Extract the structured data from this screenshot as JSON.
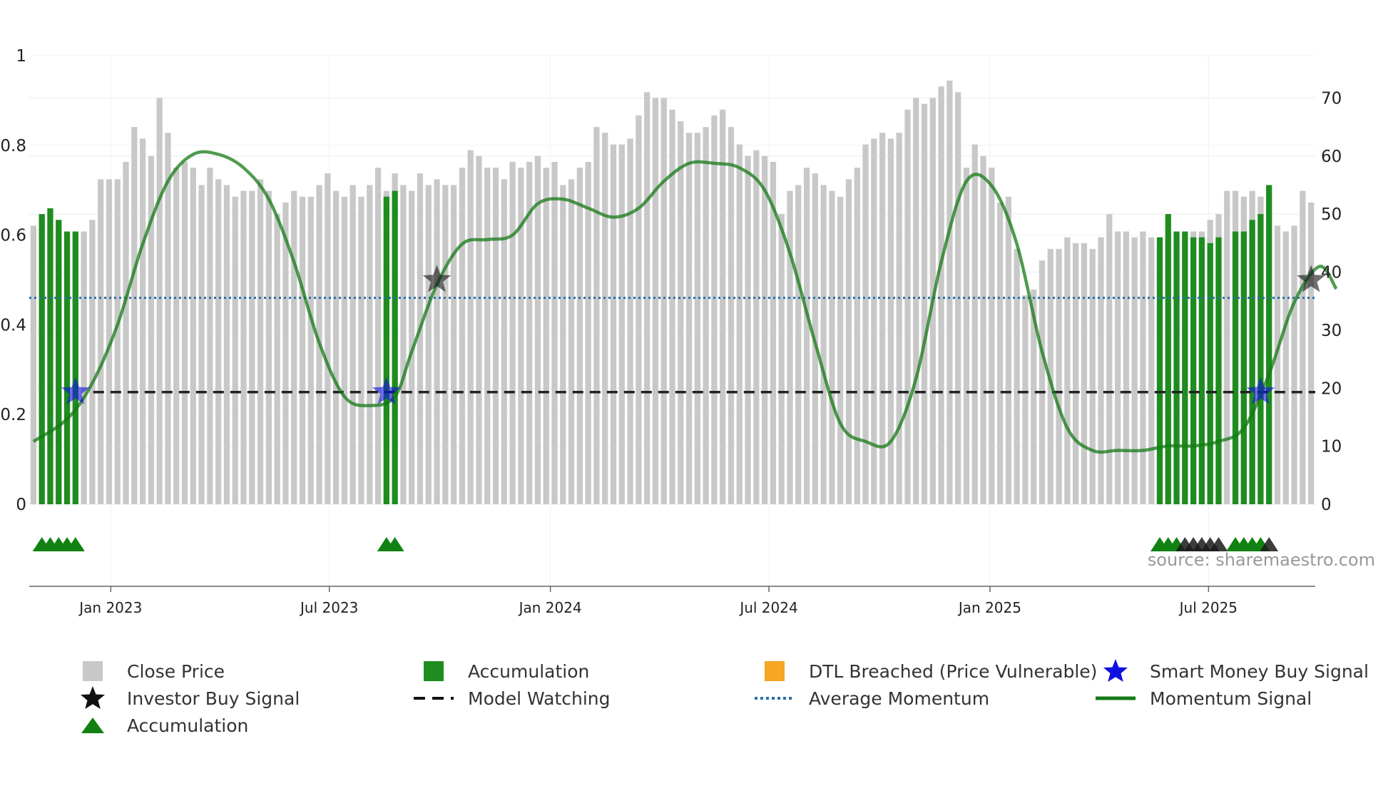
{
  "chart_data": {
    "type": "bar",
    "x_axis": {
      "ticks": [
        "Jan 2023",
        "Jul 2023",
        "Jan 2024",
        "Jul 2024",
        "Jan 2025",
        "Jul 2025"
      ]
    },
    "y_left": {
      "ticks": [
        "0",
        "0.2",
        "0.4",
        "0.6",
        "0.8",
        "1"
      ],
      "range": [
        0,
        1
      ]
    },
    "y_right": {
      "ticks": [
        "0",
        "10",
        "20",
        "30",
        "40",
        "50",
        "60",
        "70"
      ],
      "range": [
        0,
        77.3
      ]
    },
    "close_price": [
      48,
      50,
      48,
      46,
      46,
      46,
      47,
      49,
      56,
      56,
      56,
      59,
      65,
      63,
      60,
      70,
      64,
      58,
      59,
      58,
      55,
      58,
      56,
      55,
      53,
      54,
      54,
      56,
      54,
      50,
      52,
      54,
      53,
      53,
      55,
      57,
      54,
      53,
      55,
      53,
      55,
      58,
      54,
      57,
      55,
      54,
      57,
      55,
      56,
      55,
      55,
      58,
      61,
      60,
      58,
      58,
      56,
      59,
      58,
      59,
      60,
      58,
      59,
      55,
      56,
      58,
      59,
      65,
      64,
      62,
      62,
      63,
      67,
      71,
      70,
      70,
      68,
      66,
      64,
      64,
      65,
      67,
      68,
      65,
      62,
      60,
      61,
      60,
      59,
      50,
      54,
      55,
      58,
      57,
      55,
      54,
      53,
      56,
      58,
      62,
      63,
      64,
      63,
      64,
      68,
      70,
      69,
      70,
      72,
      73,
      71,
      58,
      62,
      60,
      58,
      52,
      53,
      44,
      36,
      37,
      42,
      44,
      44,
      46,
      45,
      45,
      44,
      46,
      50,
      47,
      47,
      46,
      47,
      46,
      45,
      45,
      44,
      46,
      47,
      47,
      49,
      50,
      54,
      54,
      53,
      54,
      53,
      49,
      48,
      47,
      48,
      54,
      52
    ],
    "accumulation_bars": [
      {
        "index": 1,
        "value": 50
      },
      {
        "index": 2,
        "value": 51
      },
      {
        "index": 3,
        "value": 49
      },
      {
        "index": 4,
        "value": 47
      },
      {
        "index": 5,
        "value": 47
      },
      {
        "index": 42,
        "value": 53
      },
      {
        "index": 43,
        "value": 54
      },
      {
        "index": 134,
        "value": 46
      },
      {
        "index": 135,
        "value": 50
      },
      {
        "index": 136,
        "value": 47
      },
      {
        "index": 137,
        "value": 47
      },
      {
        "index": 138,
        "value": 46
      },
      {
        "index": 139,
        "value": 46
      },
      {
        "index": 140,
        "value": 45
      },
      {
        "index": 141,
        "value": 46
      },
      {
        "index": 143,
        "value": 47
      },
      {
        "index": 144,
        "value": 47
      },
      {
        "index": 145,
        "value": 49
      },
      {
        "index": 146,
        "value": 50
      },
      {
        "index": 147,
        "value": 55
      }
    ],
    "momentum": [
      [
        0,
        0.14
      ],
      [
        4,
        0.19
      ],
      [
        7,
        0.27
      ],
      [
        10,
        0.4
      ],
      [
        13,
        0.58
      ],
      [
        16,
        0.72
      ],
      [
        19,
        0.78
      ],
      [
        22,
        0.78
      ],
      [
        25,
        0.75
      ],
      [
        28,
        0.68
      ],
      [
        31,
        0.54
      ],
      [
        34,
        0.36
      ],
      [
        37,
        0.24
      ],
      [
        40,
        0.22
      ],
      [
        43,
        0.24
      ],
      [
        45,
        0.34
      ],
      [
        48,
        0.49
      ],
      [
        51,
        0.58
      ],
      [
        54,
        0.59
      ],
      [
        57,
        0.6
      ],
      [
        60,
        0.67
      ],
      [
        63,
        0.68
      ],
      [
        66,
        0.66
      ],
      [
        69,
        0.64
      ],
      [
        72,
        0.66
      ],
      [
        75,
        0.72
      ],
      [
        78,
        0.76
      ],
      [
        81,
        0.76
      ],
      [
        84,
        0.75
      ],
      [
        87,
        0.7
      ],
      [
        90,
        0.56
      ],
      [
        93,
        0.36
      ],
      [
        96,
        0.18
      ],
      [
        99,
        0.14
      ],
      [
        102,
        0.14
      ],
      [
        105,
        0.28
      ],
      [
        108,
        0.54
      ],
      [
        111,
        0.72
      ],
      [
        114,
        0.71
      ],
      [
        117,
        0.58
      ],
      [
        120,
        0.34
      ],
      [
        123,
        0.17
      ],
      [
        126,
        0.12
      ],
      [
        129,
        0.12
      ],
      [
        132,
        0.12
      ],
      [
        135,
        0.13
      ],
      [
        138,
        0.13
      ],
      [
        141,
        0.14
      ],
      [
        144,
        0.17
      ],
      [
        147,
        0.29
      ],
      [
        150,
        0.45
      ],
      [
        153,
        0.53
      ],
      [
        155,
        0.48
      ]
    ],
    "average_momentum": 0.46,
    "model_watching": {
      "value": 0.25,
      "from_index": 5,
      "to_index": 155
    },
    "smart_money_buy_signals": [
      {
        "index": 5,
        "value": 0.25
      },
      {
        "index": 42,
        "value": 0.25
      },
      {
        "index": 146,
        "value": 0.25
      }
    ],
    "investor_buy_signals": [
      {
        "index": 48,
        "value": 0.5
      },
      {
        "index": 152,
        "value": 0.5
      }
    ],
    "accumulation_markers": [
      {
        "index": 1,
        "color": "green"
      },
      {
        "index": 2,
        "color": "green"
      },
      {
        "index": 3,
        "color": "green"
      },
      {
        "index": 4,
        "color": "green"
      },
      {
        "index": 5,
        "color": "green"
      },
      {
        "index": 42,
        "color": "green"
      },
      {
        "index": 43,
        "color": "green"
      },
      {
        "index": 134,
        "color": "green"
      },
      {
        "index": 135,
        "color": "green"
      },
      {
        "index": 136,
        "color": "green"
      },
      {
        "index": 137,
        "color": "black"
      },
      {
        "index": 138,
        "color": "black"
      },
      {
        "index": 139,
        "color": "black"
      },
      {
        "index": 140,
        "color": "black"
      },
      {
        "index": 141,
        "color": "black"
      },
      {
        "index": 143,
        "color": "green"
      },
      {
        "index": 144,
        "color": "green"
      },
      {
        "index": 145,
        "color": "green"
      },
      {
        "index": 146,
        "color": "green"
      },
      {
        "index": 147,
        "color": "black"
      }
    ],
    "source_text": "source: sharemaestro.com",
    "legend": [
      {
        "id": "close",
        "label": "Close Price"
      },
      {
        "id": "accum-bar",
        "label": "Accumulation"
      },
      {
        "id": "dtl",
        "label": "DTL Breached (Price Vulnerable)"
      },
      {
        "id": "smart",
        "label": "Smart Money Buy Signal"
      },
      {
        "id": "investor",
        "label": "Investor Buy Signal"
      },
      {
        "id": "watching",
        "label": "Model Watching"
      },
      {
        "id": "avg",
        "label": "Average Momentum"
      },
      {
        "id": "momentum",
        "label": "Momentum Signal"
      },
      {
        "id": "accum-tri",
        "label": "Accumulation"
      }
    ],
    "colors": {
      "close": "#c8c8c8",
      "accumulation": "#1e8c1e",
      "dtl": "#f5a623",
      "smart": "#1010e0",
      "investor": "#111111",
      "watching": "#222222",
      "average": "#2b6fa8",
      "momentum": "#157a15",
      "triangle": "#118211"
    }
  }
}
